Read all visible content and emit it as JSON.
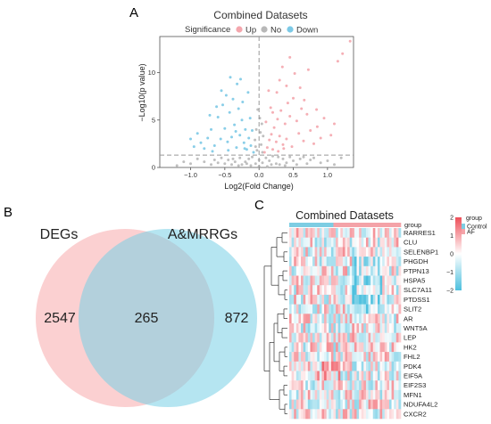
{
  "panels": {
    "a": {
      "letter": "A",
      "chart_data": {
        "type": "scatter",
        "title": "Combined Datasets",
        "xlabel": "Log2(Fold Change)",
        "ylabel": "−Log10(p value)",
        "xlim": [
          -1.45,
          1.38
        ],
        "ylim": [
          0,
          13.8
        ],
        "xticks": [
          -1.0,
          -0.5,
          0.0,
          0.5,
          1.0
        ],
        "xtick_labels": [
          "−1.0",
          "−0.5",
          "0.0",
          "0.5",
          "1.0"
        ],
        "yticks": [
          0,
          5,
          10
        ],
        "ytick_labels": [
          "0",
          "5",
          "10"
        ],
        "grid": false,
        "threshold_lines": {
          "x": 0,
          "y": 1.3
        },
        "legend": {
          "title": "Significance",
          "placement": "top",
          "items": [
            {
              "label": "Up",
              "color": "#f4a6ad"
            },
            {
              "label": "No",
              "color": "#b8b8b8"
            },
            {
              "label": "Down",
              "color": "#7cc9e6"
            }
          ]
        },
        "series": [
          {
            "name": "Up",
            "color": "#f4a6ad",
            "points": [
              [
                0.08,
                1.6
              ],
              [
                0.12,
                2.1
              ],
              [
                0.15,
                2.9
              ],
              [
                0.18,
                3.5
              ],
              [
                0.2,
                1.9
              ],
              [
                0.22,
                4.2
              ],
              [
                0.25,
                2.7
              ],
              [
                0.27,
                5.1
              ],
              [
                0.3,
                3.3
              ],
              [
                0.32,
                6.0
              ],
              [
                0.35,
                2.4
              ],
              [
                0.38,
                4.6
              ],
              [
                0.4,
                3.0
              ],
              [
                0.42,
                6.8
              ],
              [
                0.45,
                5.4
              ],
              [
                0.48,
                2.2
              ],
              [
                0.5,
                7.3
              ],
              [
                0.55,
                4.9
              ],
              [
                0.58,
                3.6
              ],
              [
                0.62,
                6.2
              ],
              [
                0.65,
                2.8
              ],
              [
                0.7,
                5.6
              ],
              [
                0.75,
                3.9
              ],
              [
                0.8,
                2.5
              ],
              [
                0.85,
                4.3
              ],
              [
                0.9,
                3.1
              ],
              [
                0.6,
                8.4
              ],
              [
                0.3,
                9.2
              ],
              [
                0.45,
                11.6
              ],
              [
                0.72,
                10.3
              ],
              [
                0.26,
                7.9
              ],
              [
                0.17,
                6.3
              ],
              [
                0.1,
                4.8
              ],
              [
                0.14,
                8.1
              ],
              [
                0.52,
                9.9
              ],
              [
                1.05,
                3.4
              ],
              [
                1.1,
                4.6
              ],
              [
                1.15,
                11.2
              ],
              [
                1.22,
                12.0
              ],
              [
                1.33,
                13.3
              ],
              [
                0.36,
                2.0
              ],
              [
                0.2,
                5.8
              ],
              [
                0.28,
                1.7
              ],
              [
                0.4,
                8.6
              ],
              [
                0.66,
                7.1
              ],
              [
                0.84,
                6.1
              ],
              [
                0.95,
                5.2
              ],
              [
                0.34,
                10.6
              ]
            ]
          },
          {
            "name": "Down",
            "color": "#7cc9e6",
            "points": [
              [
                -0.08,
                1.6
              ],
              [
                -0.12,
                2.3
              ],
              [
                -0.15,
                3.1
              ],
              [
                -0.18,
                1.9
              ],
              [
                -0.2,
                4.0
              ],
              [
                -0.22,
                2.6
              ],
              [
                -0.25,
                5.0
              ],
              [
                -0.28,
                3.4
              ],
              [
                -0.3,
                6.2
              ],
              [
                -0.33,
                2.1
              ],
              [
                -0.36,
                4.5
              ],
              [
                -0.4,
                3.2
              ],
              [
                -0.43,
                5.8
              ],
              [
                -0.46,
                2.7
              ],
              [
                -0.5,
                4.1
              ],
              [
                -0.53,
                6.6
              ],
              [
                -0.56,
                3.0
              ],
              [
                -0.6,
                5.3
              ],
              [
                -0.65,
                2.3
              ],
              [
                -0.7,
                4.0
              ],
              [
                -0.75,
                3.1
              ],
              [
                -0.8,
                2.0
              ],
              [
                -0.85,
                2.6
              ],
              [
                -0.9,
                3.6
              ],
              [
                -0.95,
                2.2
              ],
              [
                -1.0,
                3.0
              ],
              [
                -0.38,
                7.2
              ],
              [
                -0.24,
                6.9
              ],
              [
                -0.13,
                5.2
              ],
              [
                -0.32,
                8.8
              ],
              [
                -0.48,
                7.6
              ],
              [
                -0.16,
                7.9
              ],
              [
                -0.27,
                9.3
              ],
              [
                -0.42,
                9.5
              ],
              [
                -0.62,
                6.4
              ],
              [
                -0.1,
                3.9
              ],
              [
                -0.55,
                8.1
              ],
              [
                -0.72,
                5.5
              ],
              [
                -0.21,
                2.0
              ],
              [
                -0.45,
                1.8
              ],
              [
                -0.68,
                1.7
              ],
              [
                -0.34,
                3.8
              ]
            ]
          },
          {
            "name": "No",
            "color": "#b8b8b8",
            "points": [
              [
                -0.25,
                0.3
              ],
              [
                -0.2,
                0.6
              ],
              [
                -0.15,
                0.9
              ],
              [
                -0.1,
                1.1
              ],
              [
                -0.05,
                0.4
              ],
              [
                0.0,
                0.8
              ],
              [
                0.05,
                0.5
              ],
              [
                0.1,
                1.0
              ],
              [
                0.15,
                0.7
              ],
              [
                0.2,
                1.2
              ],
              [
                0.25,
                0.4
              ],
              [
                -0.3,
                0.2
              ],
              [
                0.3,
                0.3
              ],
              [
                -0.35,
                0.6
              ],
              [
                0.35,
                0.9
              ],
              [
                -0.4,
                0.3
              ],
              [
                0.4,
                0.5
              ],
              [
                -0.45,
                0.8
              ],
              [
                0.45,
                1.1
              ],
              [
                -0.5,
                0.4
              ],
              [
                0.5,
                0.7
              ],
              [
                -0.55,
                1.0
              ],
              [
                0.55,
                0.3
              ],
              [
                0.6,
                0.9
              ],
              [
                -0.6,
                0.5
              ],
              [
                0.65,
                1.1
              ],
              [
                -0.65,
                0.8
              ],
              [
                0.7,
                0.4
              ],
              [
                -0.7,
                0.3
              ],
              [
                0.75,
                0.8
              ],
              [
                -0.8,
                0.6
              ],
              [
                0.8,
                1.0
              ],
              [
                0.9,
                0.5
              ],
              [
                -0.9,
                0.9
              ],
              [
                1.0,
                0.7
              ],
              [
                -1.0,
                0.4
              ],
              [
                1.1,
                0.3
              ],
              [
                -1.1,
                0.6
              ],
              [
                -1.2,
                0.2
              ],
              [
                1.2,
                1.0
              ],
              [
                -0.03,
                1.8
              ],
              [
                0.03,
                2.4
              ],
              [
                -0.06,
                2.9
              ],
              [
                0.06,
                3.3
              ],
              [
                -0.04,
                4.0
              ],
              [
                0.04,
                4.6
              ],
              [
                0.01,
                5.2
              ],
              [
                -0.02,
                6.1
              ],
              [
                0.02,
                3.7
              ],
              [
                -0.05,
                2.2
              ],
              [
                0.05,
                1.6
              ],
              [
                0.0,
                0.1
              ],
              [
                -0.12,
                0.2
              ],
              [
                0.12,
                0.1
              ],
              [
                -0.18,
                0.4
              ],
              [
                0.18,
                0.3
              ],
              [
                -0.28,
                1.0
              ],
              [
                0.28,
                1.1
              ],
              [
                -0.38,
                0.9
              ],
              [
                0.38,
                0.2
              ]
            ]
          }
        ]
      }
    },
    "b": {
      "letter": "B",
      "chart_data": {
        "type": "venn",
        "sets": [
          {
            "label": "DEGs",
            "color": "#f8a9ab",
            "only": "2547"
          },
          {
            "label": "A&MRRGs",
            "color": "#79cfe6",
            "only": "872"
          }
        ],
        "intersection": "265"
      }
    },
    "c": {
      "letter": "C",
      "chart_data": {
        "type": "heatmap",
        "title": "Combined Datasets",
        "columns": 48,
        "group_label": "group",
        "groups": [
          {
            "label": "Control",
            "color": "#7dcde3",
            "count": 19
          },
          {
            "label": "AF",
            "color": "#f4a3a8",
            "count": 29
          }
        ],
        "genes": [
          "RARRES1",
          "CLU",
          "SELENBP1",
          "PHGDH",
          "PTPN13",
          "HSPA5",
          "SLC7A11",
          "PTDSS1",
          "SLIT2",
          "AR",
          "WNT5A",
          "LEP",
          "HK2",
          "FHL2",
          "PDK4",
          "EIF5A",
          "EIF2S3",
          "MFN1",
          "NDUFA4L2",
          "CXCR2"
        ],
        "color_scale": {
          "min": -2,
          "max": 2,
          "ticks": [
            2,
            1,
            0,
            -1,
            -2
          ],
          "tick_labels": [
            "2",
            "1",
            "0",
            "−1",
            "−2"
          ],
          "colors": [
            "#4ec0de",
            "#ffffff",
            "#ee4f59"
          ]
        },
        "legend_title": "group",
        "dendrogram": "rows"
      }
    }
  }
}
